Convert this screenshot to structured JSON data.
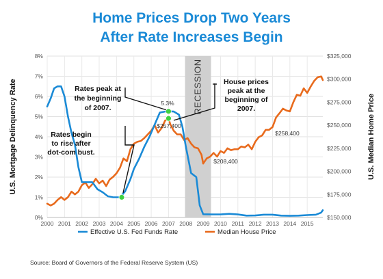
{
  "chart_data": {
    "type": "line",
    "title_lines": [
      "Home Prices Drop Two Years",
      "After Rate Increases Begin"
    ],
    "ylabel_left": "U.S. Mortgage Delinquency Rate",
    "ylabel_right": "U.S. Median Home Price",
    "x_ticks": [
      "2000",
      "2001",
      "2002",
      "2003",
      "2004",
      "2005",
      "2006",
      "2007",
      "2008",
      "2009",
      "2010",
      "2011",
      "2012",
      "2013",
      "2014",
      "2015"
    ],
    "y_left_ticks": [
      "0%",
      "1%",
      "2%",
      "3%",
      "4%",
      "5%",
      "6%",
      "7%",
      "8%"
    ],
    "y_right_ticks": [
      "$150,000",
      "$175,000",
      "$200,000",
      "$225,000",
      "$250,000",
      "$275,000",
      "$300,000",
      "$325,000"
    ],
    "xlim": [
      2000,
      2015.9
    ],
    "ylim_left": [
      0,
      8
    ],
    "ylim_right": [
      150000,
      325000
    ],
    "grid": true,
    "legend_placement": "bottom",
    "series": [
      {
        "name": "Effective U.S. Fed Funds Rate",
        "axis": "left",
        "color": "#1a8ad6",
        "points": [
          [
            2000.0,
            5.5
          ],
          [
            2000.2,
            5.9
          ],
          [
            2000.4,
            6.4
          ],
          [
            2000.6,
            6.5
          ],
          [
            2000.8,
            6.5
          ],
          [
            2001.0,
            6.0
          ],
          [
            2001.2,
            5.0
          ],
          [
            2001.4,
            4.2
          ],
          [
            2001.6,
            3.6
          ],
          [
            2001.8,
            2.5
          ],
          [
            2002.0,
            1.75
          ],
          [
            2002.3,
            1.75
          ],
          [
            2002.6,
            1.75
          ],
          [
            2002.9,
            1.4
          ],
          [
            2003.2,
            1.25
          ],
          [
            2003.5,
            1.05
          ],
          [
            2003.8,
            1.0
          ],
          [
            2004.2,
            1.0
          ],
          [
            2004.5,
            1.3
          ],
          [
            2004.8,
            1.9
          ],
          [
            2005.0,
            2.4
          ],
          [
            2005.3,
            2.9
          ],
          [
            2005.6,
            3.5
          ],
          [
            2005.9,
            4.0
          ],
          [
            2006.2,
            4.6
          ],
          [
            2006.5,
            5.2
          ],
          [
            2006.8,
            5.25
          ],
          [
            2007.0,
            5.26
          ],
          [
            2007.3,
            5.25
          ],
          [
            2007.6,
            5.1
          ],
          [
            2007.8,
            4.5
          ],
          [
            2008.0,
            3.5
          ],
          [
            2008.3,
            2.2
          ],
          [
            2008.6,
            2.0
          ],
          [
            2008.8,
            0.6
          ],
          [
            2009.0,
            0.16
          ],
          [
            2009.5,
            0.15
          ],
          [
            2010.0,
            0.15
          ],
          [
            2010.5,
            0.18
          ],
          [
            2011.0,
            0.15
          ],
          [
            2011.5,
            0.09
          ],
          [
            2012.0,
            0.1
          ],
          [
            2012.5,
            0.14
          ],
          [
            2013.0,
            0.14
          ],
          [
            2013.5,
            0.09
          ],
          [
            2014.0,
            0.08
          ],
          [
            2014.5,
            0.09
          ],
          [
            2015.0,
            0.12
          ],
          [
            2015.5,
            0.14
          ],
          [
            2015.8,
            0.24
          ],
          [
            2015.9,
            0.36
          ]
        ]
      },
      {
        "name": "Median House Price",
        "axis": "right",
        "color": "#e86a1c",
        "points": [
          [
            2000.0,
            165000
          ],
          [
            2000.2,
            163000
          ],
          [
            2000.4,
            165000
          ],
          [
            2000.6,
            169000
          ],
          [
            2000.8,
            172000
          ],
          [
            2001.0,
            169000
          ],
          [
            2001.2,
            172000
          ],
          [
            2001.4,
            178000
          ],
          [
            2001.6,
            175000
          ],
          [
            2001.8,
            178000
          ],
          [
            2002.0,
            185000
          ],
          [
            2002.2,
            188000
          ],
          [
            2002.4,
            182000
          ],
          [
            2002.6,
            186000
          ],
          [
            2002.8,
            192000
          ],
          [
            2003.0,
            187000
          ],
          [
            2003.2,
            190000
          ],
          [
            2003.4,
            184000
          ],
          [
            2003.6,
            191000
          ],
          [
            2003.8,
            194000
          ],
          [
            2004.0,
            198000
          ],
          [
            2004.2,
            204000
          ],
          [
            2004.4,
            214000
          ],
          [
            2004.6,
            211000
          ],
          [
            2004.8,
            224000
          ],
          [
            2005.0,
            230000
          ],
          [
            2005.2,
            232000
          ],
          [
            2005.4,
            233000
          ],
          [
            2005.6,
            236000
          ],
          [
            2005.8,
            240000
          ],
          [
            2006.0,
            244000
          ],
          [
            2006.2,
            250000
          ],
          [
            2006.4,
            242000
          ],
          [
            2006.6,
            247000
          ],
          [
            2006.8,
            255000
          ],
          [
            2007.0,
            257400
          ],
          [
            2007.1,
            251000
          ],
          [
            2007.3,
            244000
          ],
          [
            2007.5,
            240000
          ],
          [
            2007.7,
            240000
          ],
          [
            2007.9,
            234000
          ],
          [
            2008.1,
            236000
          ],
          [
            2008.3,
            230000
          ],
          [
            2008.5,
            226000
          ],
          [
            2008.7,
            225000
          ],
          [
            2008.9,
            218000
          ],
          [
            2009.0,
            208400
          ],
          [
            2009.2,
            214000
          ],
          [
            2009.4,
            216000
          ],
          [
            2009.6,
            220000
          ],
          [
            2009.8,
            216000
          ],
          [
            2010.0,
            222000
          ],
          [
            2010.2,
            220000
          ],
          [
            2010.4,
            225000
          ],
          [
            2010.6,
            223000
          ],
          [
            2010.8,
            224000
          ],
          [
            2011.0,
            224000
          ],
          [
            2011.2,
            227000
          ],
          [
            2011.4,
            226000
          ],
          [
            2011.6,
            229000
          ],
          [
            2011.8,
            224000
          ],
          [
            2012.0,
            232000
          ],
          [
            2012.2,
            237000
          ],
          [
            2012.4,
            239000
          ],
          [
            2012.6,
            245000
          ],
          [
            2012.8,
            245000
          ],
          [
            2013.0,
            248000
          ],
          [
            2013.2,
            258400
          ],
          [
            2013.4,
            263000
          ],
          [
            2013.6,
            268000
          ],
          [
            2013.8,
            266000
          ],
          [
            2014.0,
            265000
          ],
          [
            2014.2,
            275000
          ],
          [
            2014.4,
            283000
          ],
          [
            2014.6,
            282000
          ],
          [
            2014.8,
            290000
          ],
          [
            2015.0,
            285000
          ],
          [
            2015.2,
            292000
          ],
          [
            2015.4,
            298000
          ],
          [
            2015.6,
            302000
          ],
          [
            2015.8,
            303000
          ],
          [
            2015.9,
            299000
          ]
        ]
      }
    ],
    "recession": {
      "label": "RECESSION",
      "from": 2007.95,
      "to": 2009.45
    },
    "annotations": [
      {
        "text": [
          "Rates peak at",
          "the beginning",
          "of 2007."
        ]
      },
      {
        "text": [
          "Rates begin",
          "to rise after",
          "dot-com bust."
        ]
      },
      {
        "text": [
          "House prices",
          "peak at the",
          "beginning of",
          "2007."
        ]
      }
    ],
    "data_labels": [
      {
        "text": "5.3%"
      },
      {
        "text": "$257,400"
      },
      {
        "text": "$208,400"
      },
      {
        "text": "$258,400"
      }
    ],
    "markers": [
      {
        "x": 2004.3,
        "y": 1.0,
        "axis": "left"
      },
      {
        "x": 2007.0,
        "y": 5.26,
        "axis": "left"
      },
      {
        "x": 2007.0,
        "y": 257400,
        "axis": "right"
      }
    ],
    "marker_color": "#3fd141",
    "source": "Source: Board of Governors of the Federal Reserve System (US)"
  }
}
